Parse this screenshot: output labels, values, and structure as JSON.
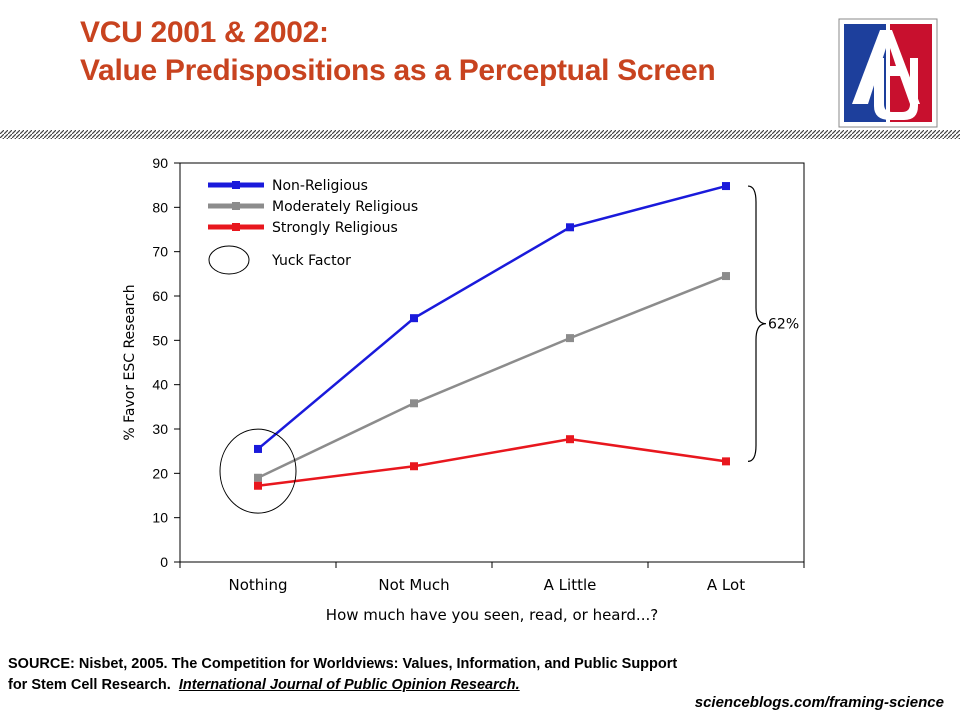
{
  "slide": {
    "title_line1": "VCU 2001 & 2002:",
    "title_line2": "Value Predispositions as a Perceptual Screen",
    "logo_text": "AU",
    "source_prefix": "SOURCE: Nisbet, 2005. The Competition for Worldviews: Values, Information, and Public Support",
    "source_line2": "for Stem Cell Research.",
    "source_journal": "International Journal of Public Opinion Research.",
    "credit": "scienceblogs.com/framing-science"
  },
  "colors": {
    "title": "#c8431f",
    "non_religious": "#1a1adb",
    "moderately_religious": "#8c8c8c",
    "strongly_religious": "#e8171e",
    "logo_blue": "#1d3f9c",
    "logo_red": "#c8102e"
  },
  "chart_data": {
    "type": "line",
    "categories": [
      "Nothing",
      "Not Much",
      "A Little",
      "A Lot"
    ],
    "series": [
      {
        "name": "Non-Religious",
        "values": [
          25.5,
          55,
          75.5,
          84.8
        ]
      },
      {
        "name": "Moderately Religious",
        "values": [
          19,
          35.8,
          50.5,
          64.5
        ]
      },
      {
        "name": "Strongly Religious",
        "values": [
          17.2,
          21.6,
          27.7,
          22.7
        ]
      }
    ],
    "xlabel": "How much have you seen, read, or heard...?",
    "ylabel": "% Favor ESC Research",
    "ylim": [
      0,
      90
    ],
    "yticks": [
      0,
      10,
      20,
      30,
      40,
      50,
      60,
      70,
      80,
      90
    ],
    "legend_position": "top-left",
    "grid": false,
    "annotations": {
      "yuck_label": "Yuck Factor",
      "gap_label": "62%"
    }
  }
}
